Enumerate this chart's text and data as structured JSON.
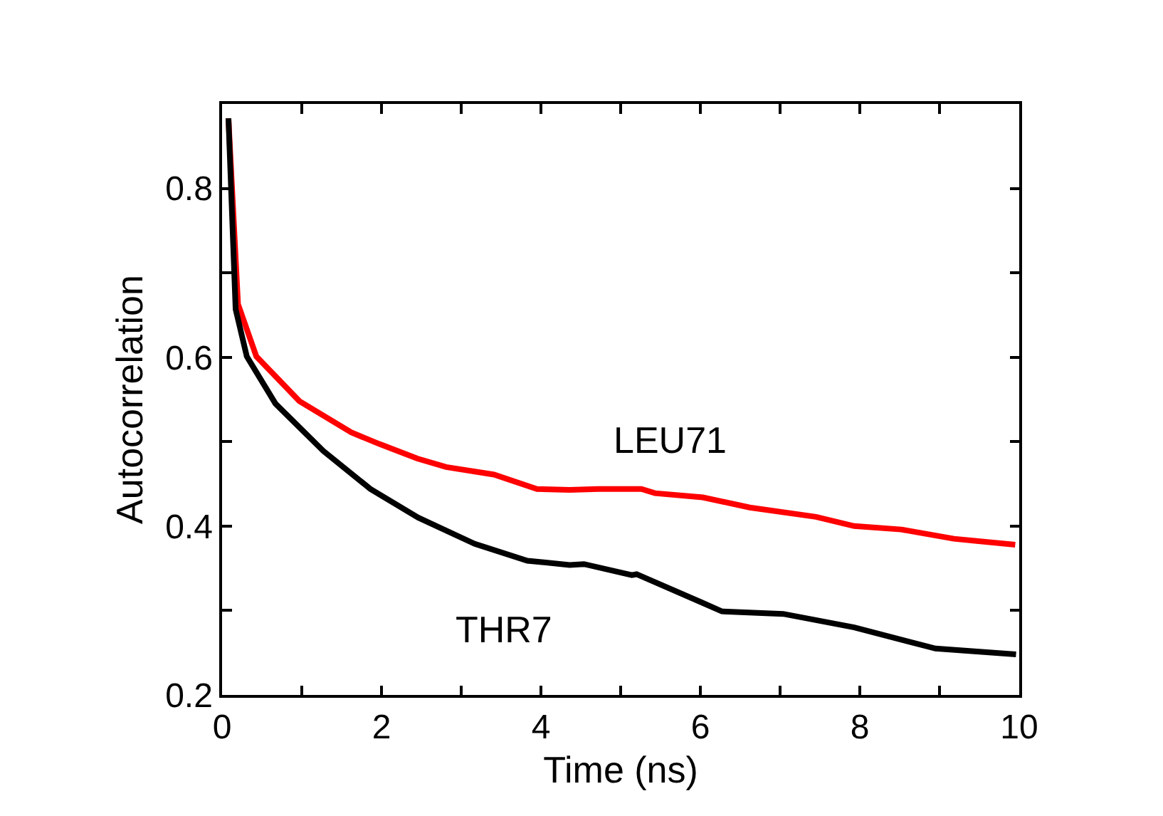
{
  "chart_data": {
    "type": "line",
    "xlabel": "Time (ns)",
    "ylabel": "Autocorrelation",
    "xlim": [
      0,
      10
    ],
    "ylim": [
      0.2,
      0.9
    ],
    "xticks": [
      0,
      {
        "value": 1,
        "label": null
      },
      2,
      {
        "value": 3,
        "label": null
      },
      4,
      {
        "value": 5,
        "label": null
      },
      6,
      {
        "value": 7,
        "label": null
      },
      8,
      {
        "value": 9,
        "label": null
      },
      10
    ],
    "yticks": [
      0.2,
      {
        "value": 0.3,
        "label": null
      },
      0.4,
      {
        "value": 0.5,
        "label": null
      },
      0.6,
      {
        "value": 0.7,
        "label": null
      },
      0.8
    ],
    "legend": false,
    "marker": "none",
    "line_style": "solid",
    "series": [
      {
        "name": "LEU71",
        "color": "#ff0000",
        "x": [
          0.08,
          0.2,
          0.43,
          0.97,
          1.62,
          1.98,
          2.45,
          2.81,
          3.41,
          3.95,
          4.36,
          4.72,
          5.26,
          5.43,
          6.03,
          6.62,
          7.45,
          7.93,
          8.52,
          9.18,
          9.95
        ],
        "values": [
          0.883,
          0.663,
          0.601,
          0.548,
          0.511,
          0.497,
          0.48,
          0.47,
          0.461,
          0.444,
          0.443,
          0.444,
          0.444,
          0.439,
          0.434,
          0.422,
          0.411,
          0.4,
          0.396,
          0.385,
          0.378
        ]
      },
      {
        "name": "THR7",
        "color": "#000000",
        "x": [
          0.08,
          0.17,
          0.31,
          0.67,
          1.27,
          1.86,
          2.46,
          3.17,
          3.83,
          4.36,
          4.54,
          5.14,
          5.2,
          6.03,
          6.27,
          7.04,
          7.93,
          8.95,
          9.96
        ],
        "values": [
          0.883,
          0.657,
          0.601,
          0.545,
          0.489,
          0.444,
          0.41,
          0.379,
          0.359,
          0.354,
          0.355,
          0.342,
          0.343,
          0.309,
          0.299,
          0.296,
          0.28,
          0.255,
          0.248
        ]
      }
    ]
  }
}
